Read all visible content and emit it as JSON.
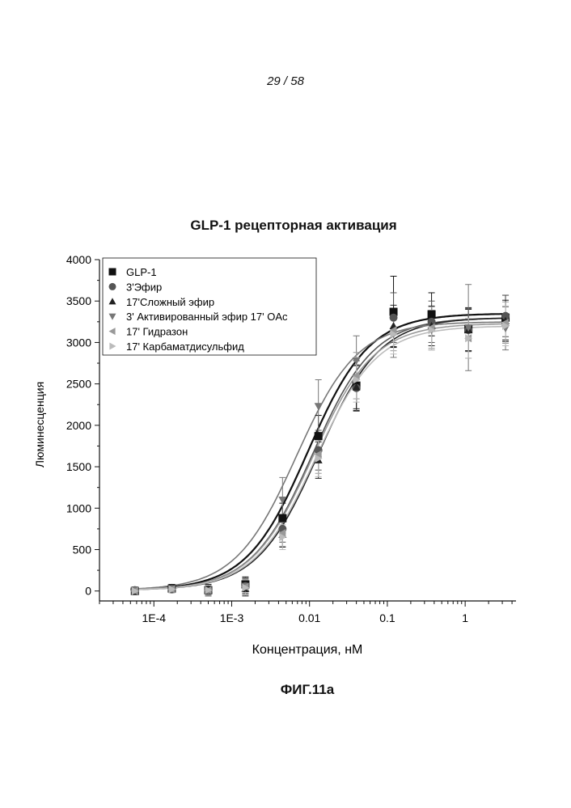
{
  "page": {
    "number": "29 / 58",
    "figure_label": "ФИГ.11а"
  },
  "chart_data": {
    "type": "scatter",
    "title": "GLP-1 рецепторная активация",
    "xlabel": "Концентрация, нМ",
    "ylabel": "Люминесценция",
    "x_scale": "log",
    "xlim": [
      2e-05,
      4.5
    ],
    "ylim": [
      -120,
      4000
    ],
    "x_ticks": [
      {
        "value": 0.0001,
        "label": "1E-4"
      },
      {
        "value": 0.001,
        "label": "1E-3"
      },
      {
        "value": 0.01,
        "label": "0.01"
      },
      {
        "value": 0.1,
        "label": "0.1"
      },
      {
        "value": 1,
        "label": "1"
      }
    ],
    "y_ticks": [
      0,
      500,
      1000,
      1500,
      2000,
      2500,
      3000,
      3500,
      4000
    ],
    "grid": false,
    "legend_position": "top-left",
    "x": [
      5.7e-05,
      0.00017,
      0.0005,
      0.0015,
      0.0045,
      0.013,
      0.04,
      0.12,
      0.37,
      1.1,
      3.3
    ],
    "series": [
      {
        "name": "GLP-1",
        "marker": "square",
        "color": "#111111",
        "values": [
          0,
          30,
          10,
          80,
          880,
          1870,
          2480,
          3370,
          3340,
          3160,
          3300
        ],
        "errors": [
          40,
          40,
          60,
          90,
          180,
          250,
          300,
          430,
          260,
          260,
          270
        ],
        "fit": {
          "bottom": 10,
          "top": 3350,
          "ec50": 0.0095,
          "hill": 1.1
        }
      },
      {
        "name": "3'Эфир",
        "marker": "circle",
        "color": "#555555",
        "values": [
          10,
          20,
          0,
          60,
          750,
          1700,
          2450,
          3300,
          3250,
          3150,
          3320
        ],
        "errors": [
          40,
          40,
          60,
          90,
          160,
          240,
          280,
          300,
          250,
          260,
          250
        ],
        "fit": {
          "bottom": 10,
          "top": 3300,
          "ec50": 0.011,
          "hill": 1.1
        }
      },
      {
        "name": "17'Сложный эфир",
        "marker": "triangle-up",
        "color": "#222222",
        "values": [
          0,
          40,
          20,
          30,
          680,
          1580,
          2460,
          3200,
          3200,
          3150,
          3260
        ],
        "errors": [
          40,
          40,
          60,
          90,
          150,
          220,
          260,
          250,
          240,
          250,
          250
        ],
        "fit": {
          "bottom": 10,
          "top": 3300,
          "ec50": 0.013,
          "hill": 1.1
        }
      },
      {
        "name": "3' Активированный эфир 17' OAc",
        "marker": "triangle-down",
        "color": "#777777",
        "values": [
          10,
          30,
          0,
          60,
          1100,
          2230,
          2780,
          3100,
          3150,
          3180,
          3170
        ],
        "errors": [
          40,
          40,
          60,
          100,
          270,
          320,
          300,
          280,
          240,
          520,
          260
        ],
        "fit": {
          "bottom": 10,
          "top": 3250,
          "ec50": 0.0068,
          "hill": 1.1
        }
      },
      {
        "name": "17' Гидразон",
        "marker": "triangle-left",
        "color": "#999999",
        "values": [
          0,
          20,
          10,
          50,
          700,
          1650,
          2600,
          3150,
          3180,
          3050,
          3240
        ],
        "errors": [
          40,
          40,
          60,
          90,
          160,
          230,
          280,
          250,
          250,
          240,
          250
        ],
        "fit": {
          "bottom": 10,
          "top": 3230,
          "ec50": 0.011,
          "hill": 1.1
        }
      },
      {
        "name": "17' Карбаматдисульфид",
        "marker": "triangle-right",
        "color": "#bbbbbb",
        "values": [
          0,
          20,
          10,
          40,
          650,
          1600,
          2550,
          3100,
          3150,
          3050,
          3200
        ],
        "errors": [
          40,
          40,
          60,
          90,
          150,
          220,
          270,
          240,
          240,
          240,
          240
        ],
        "fit": {
          "bottom": 10,
          "top": 3200,
          "ec50": 0.012,
          "hill": 1.1
        }
      }
    ]
  }
}
